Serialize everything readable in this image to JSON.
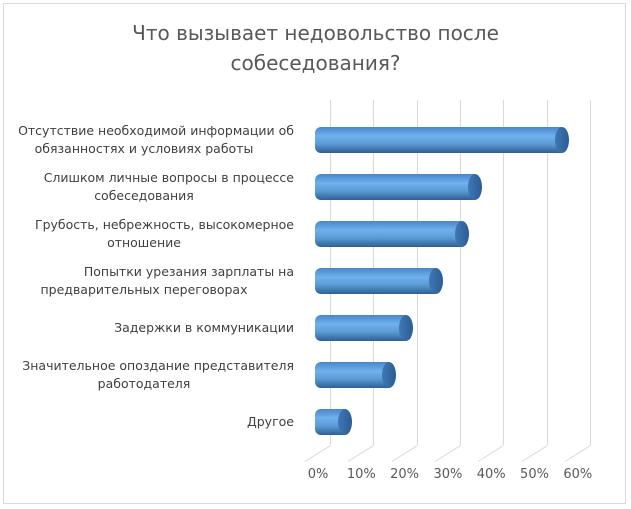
{
  "chart_data": {
    "type": "bar",
    "orientation": "horizontal",
    "style": "3d-cylinder",
    "title": "Что вызывает недовольство после собеседования?",
    "title_lines": [
      "Что вызывает недовольство после",
      "собеседования?"
    ],
    "categories": [
      "Отсутствие необходимой информации об обязанностях и условиях работы",
      "Слишком личные вопросы в процессе собеседования",
      "Грубость, небрежность, высокомерное отношение",
      "Попытки урезания зарплаты на предварительных переговорах",
      "Задержки в коммуникации",
      "Значительное опоздание представителя работодателя",
      "Другое"
    ],
    "category_lines": [
      [
        "Отсутствие необходимой информации об",
        "обязанностях и условиях работы"
      ],
      [
        "Слишком личные вопросы в процессе",
        "собеседования"
      ],
      [
        "Грубость, небрежность, высокомерное",
        "отношение"
      ],
      [
        "Попытки урезания зарплаты на",
        "предварительных переговорах"
      ],
      [
        "Задержки в коммуникации"
      ],
      [
        "Значительное опоздание представителя",
        "работодателя"
      ],
      [
        "Другое"
      ]
    ],
    "values": [
      57,
      37,
      34,
      28,
      21,
      17,
      7
    ],
    "unit": "%",
    "xlabel": "",
    "ylabel": "",
    "xlim": [
      0,
      60
    ],
    "x_ticks": [
      "0%",
      "10%",
      "20%",
      "30%",
      "40%",
      "50%",
      "60%"
    ],
    "grid": true,
    "legend": "none",
    "bar_color": "#5b9bd5"
  }
}
